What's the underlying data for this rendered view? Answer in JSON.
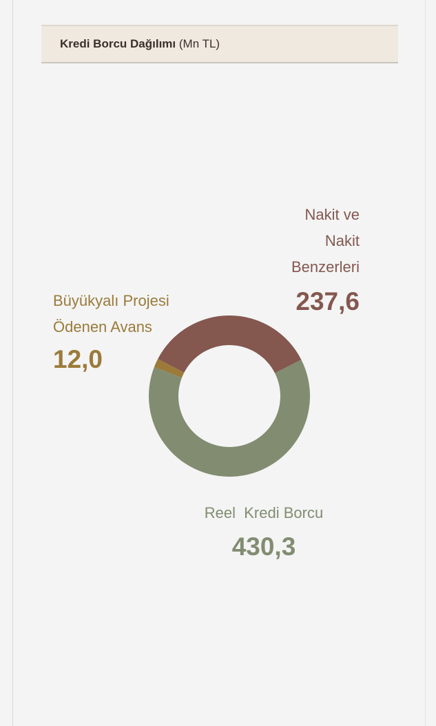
{
  "chart_data": {
    "type": "donut",
    "title": "Kredi Borcu Dağılımı",
    "unit": "(Mn TL)",
    "categories": [
      "Nakit ve Nakit Benzerleri",
      "Reel  Kredi Borcu",
      "Büyükyalı Projesi Ödenen Avans"
    ],
    "values": [
      237.6,
      430.3,
      12.0
    ],
    "value_labels": [
      "237,6",
      "430,3",
      "12,0"
    ],
    "colors": [
      "#84574f",
      "#818c71",
      "#9b7a3a"
    ]
  }
}
